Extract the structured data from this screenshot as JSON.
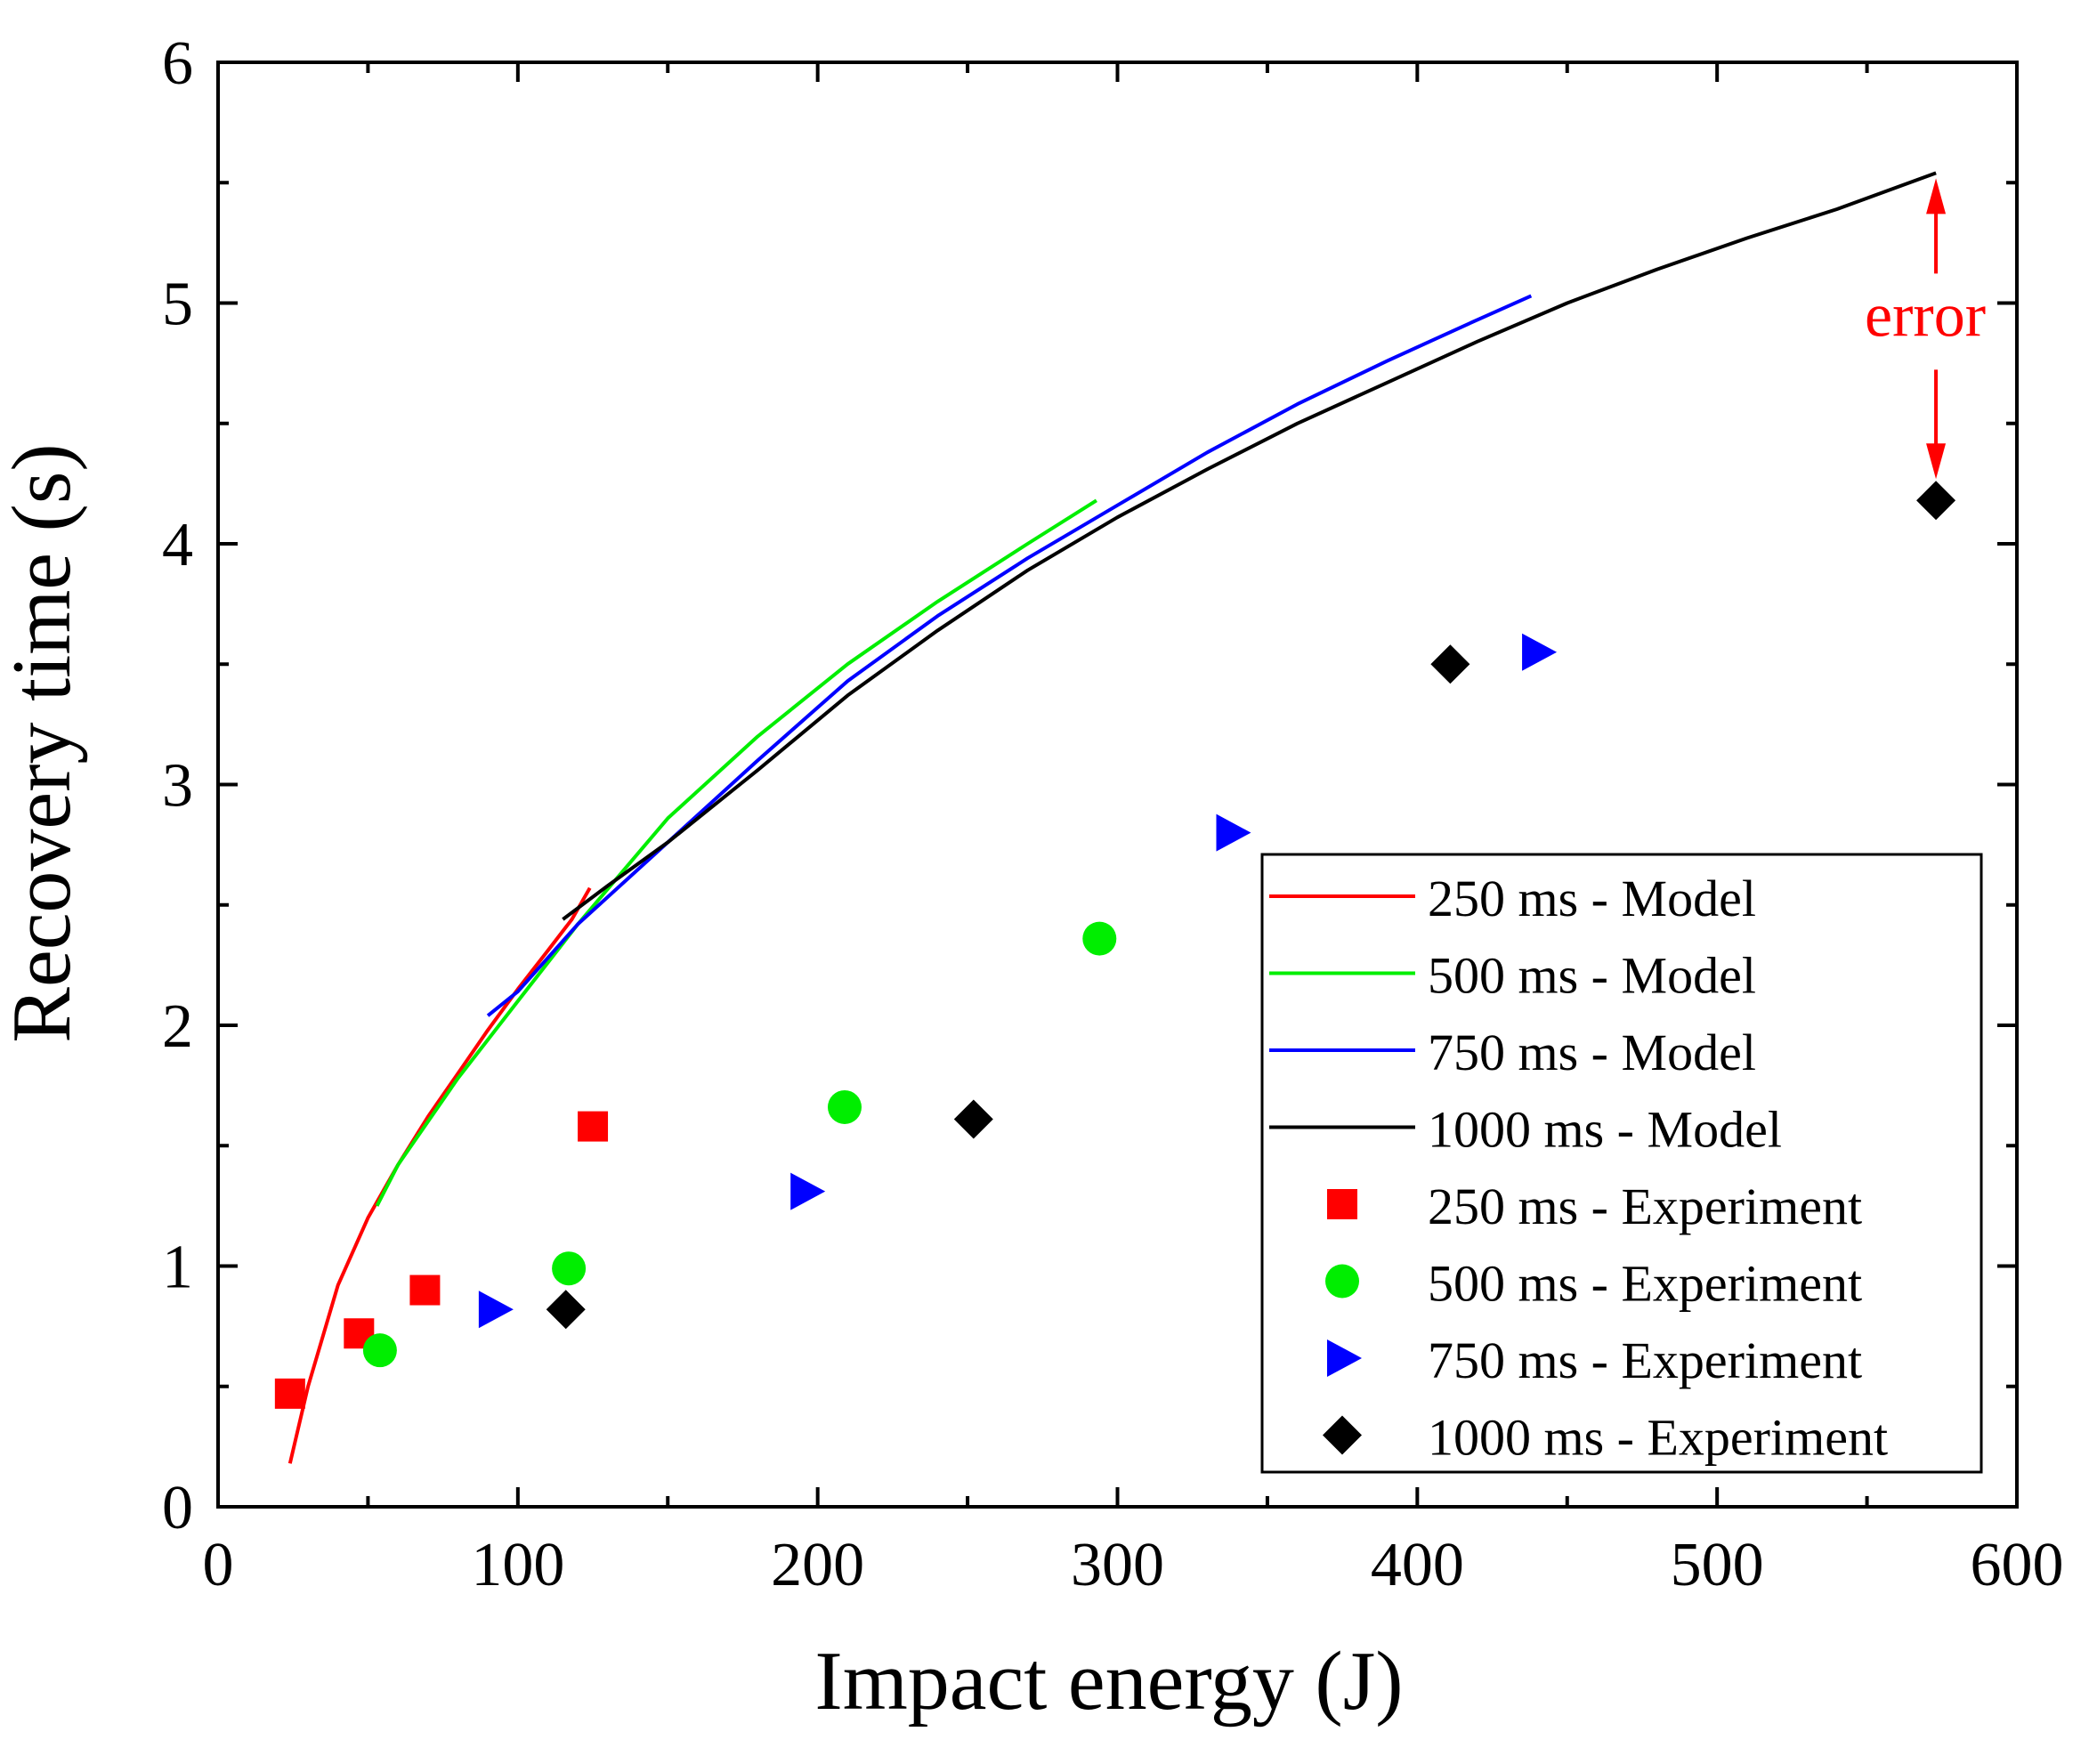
{
  "chart_data": {
    "type": "scatter",
    "xlabel": "Impact energy (J)",
    "ylabel": "Recovery time (s)",
    "xlim": [
      0,
      600
    ],
    "ylim": [
      0,
      6
    ],
    "xticks": [
      0,
      100,
      200,
      300,
      400,
      500,
      600
    ],
    "yticks": [
      0,
      1,
      2,
      3,
      4,
      5,
      6
    ],
    "grid": false,
    "legend_position": "bottom-right",
    "series": [
      {
        "name": "250 ms - Model",
        "kind": "line",
        "color": "#ff0000",
        "x": [
          24,
          30,
          40,
          50,
          60,
          70,
          80,
          90,
          100,
          110,
          118,
          124
        ],
        "y": [
          0.18,
          0.5,
          0.92,
          1.2,
          1.42,
          1.62,
          1.8,
          1.98,
          2.15,
          2.31,
          2.44,
          2.57
        ]
      },
      {
        "name": "500 ms - Model",
        "kind": "line",
        "color": "#00ee00",
        "x": [
          53,
          60,
          80,
          100,
          120,
          150,
          180,
          210,
          240,
          270,
          293
        ],
        "y": [
          1.25,
          1.42,
          1.78,
          2.1,
          2.42,
          2.86,
          3.2,
          3.5,
          3.76,
          4.0,
          4.18
        ]
      },
      {
        "name": "750 ms - Model",
        "kind": "line",
        "color": "#0000ff",
        "x": [
          90,
          100,
          120,
          150,
          180,
          210,
          240,
          270,
          300,
          330,
          360,
          390,
          420,
          438
        ],
        "y": [
          2.04,
          2.14,
          2.42,
          2.76,
          3.1,
          3.43,
          3.7,
          3.94,
          4.16,
          4.38,
          4.58,
          4.76,
          4.93,
          5.03
        ]
      },
      {
        "name": "1000 ms - Model",
        "kind": "line",
        "color": "#000000",
        "x": [
          115,
          130,
          150,
          180,
          210,
          240,
          270,
          300,
          330,
          360,
          390,
          420,
          450,
          480,
          510,
          540,
          573
        ],
        "y": [
          2.44,
          2.58,
          2.76,
          3.06,
          3.37,
          3.64,
          3.89,
          4.11,
          4.31,
          4.5,
          4.67,
          4.84,
          5.0,
          5.14,
          5.27,
          5.39,
          5.54
        ]
      },
      {
        "name": "250 ms - Experiment",
        "kind": "marker",
        "marker": "square",
        "color": "#ff0000",
        "x": [
          24,
          47,
          69,
          125
        ],
        "y": [
          0.47,
          0.72,
          0.9,
          1.58
        ]
      },
      {
        "name": "500 ms - Experiment",
        "kind": "marker",
        "marker": "circle",
        "color": "#00ee00",
        "x": [
          54,
          117,
          209,
          294
        ],
        "y": [
          0.65,
          0.99,
          1.66,
          2.36
        ]
      },
      {
        "name": "750 ms - Experiment",
        "kind": "marker",
        "marker": "triangle-right",
        "color": "#0000ff",
        "x": [
          92,
          196,
          338,
          440
        ],
        "y": [
          0.82,
          1.31,
          2.8,
          3.55
        ]
      },
      {
        "name": "1000 ms - Experiment",
        "kind": "marker",
        "marker": "diamond",
        "color": "#000000",
        "x": [
          116,
          252,
          411,
          573
        ],
        "y": [
          0.82,
          1.61,
          3.5,
          4.18
        ]
      }
    ],
    "annotations": [
      {
        "text": "error",
        "color": "#ff0000",
        "x": 573,
        "y_top": 5.54,
        "y_bottom": 4.18
      }
    ]
  }
}
